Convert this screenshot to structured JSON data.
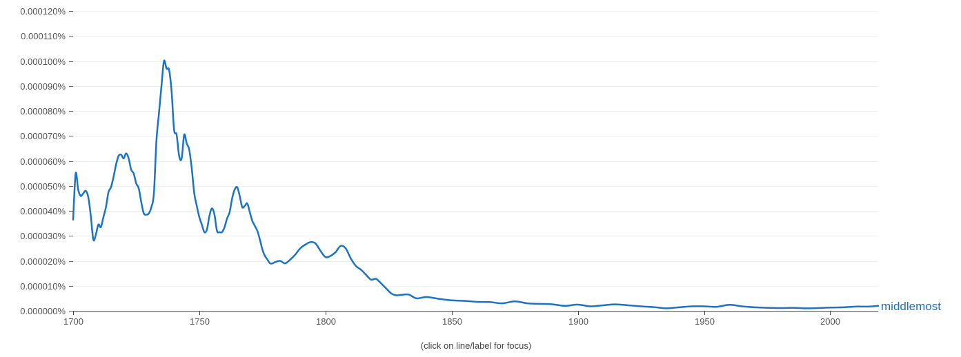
{
  "chart_data": {
    "type": "line",
    "xlim": [
      1700,
      2019
    ],
    "ylim": [
      0,
      0.00012
    ],
    "y_ticks": [
      0,
      1e-05,
      2e-05,
      3e-05,
      4e-05,
      5e-05,
      6e-05,
      7e-05,
      8e-05,
      9e-05,
      0.0001,
      0.00011,
      0.00012
    ],
    "y_tick_labels": [
      "0.000000%",
      "0.000010%",
      "0.000020%",
      "0.000030%",
      "0.000040%",
      "0.000050%",
      "0.000060%",
      "0.000070%",
      "0.000080%",
      "0.000090%",
      "0.000100%",
      "0.000110%",
      "0.000120%"
    ],
    "x_ticks": [
      1700,
      1750,
      1800,
      1850,
      1900,
      1950,
      2000
    ],
    "x_tick_labels": [
      "1700",
      "1750",
      "1800",
      "1850",
      "1900",
      "1950",
      "2000"
    ],
    "grid": true,
    "legend": "end-of-line label",
    "series": [
      {
        "name": "middlemost",
        "color": "#1a73c8",
        "x": [
          1700,
          1701,
          1702,
          1703,
          1704,
          1705,
          1706,
          1707,
          1708,
          1709,
          1710,
          1711,
          1712,
          1713,
          1714,
          1715,
          1716,
          1717,
          1718,
          1719,
          1720,
          1721,
          1722,
          1723,
          1724,
          1725,
          1726,
          1727,
          1728,
          1729,
          1730,
          1731,
          1732,
          1733,
          1734,
          1735,
          1736,
          1737,
          1738,
          1739,
          1740,
          1741,
          1742,
          1743,
          1744,
          1745,
          1746,
          1747,
          1748,
          1749,
          1750,
          1751,
          1752,
          1753,
          1754,
          1755,
          1756,
          1757,
          1758,
          1759,
          1760,
          1761,
          1762,
          1763,
          1764,
          1765,
          1766,
          1767,
          1768,
          1769,
          1770,
          1771,
          1772,
          1773,
          1774,
          1775,
          1776,
          1777,
          1778,
          1779,
          1780,
          1782,
          1784,
          1786,
          1788,
          1790,
          1792,
          1794,
          1796,
          1798,
          1800,
          1802,
          1804,
          1806,
          1808,
          1810,
          1812,
          1814,
          1816,
          1818,
          1820,
          1822,
          1824,
          1826,
          1828,
          1830,
          1833,
          1836,
          1840,
          1845,
          1850,
          1855,
          1860,
          1865,
          1870,
          1875,
          1880,
          1885,
          1890,
          1895,
          1900,
          1905,
          1910,
          1915,
          1920,
          1925,
          1930,
          1935,
          1940,
          1945,
          1950,
          1955,
          1960,
          1965,
          1970,
          1975,
          1980,
          1985,
          1990,
          1995,
          2000,
          2005,
          2010,
          2015,
          2019
        ],
        "values": [
          3.65e-05,
          5.5e-05,
          4.85e-05,
          4.6e-05,
          4.7e-05,
          4.8e-05,
          4.55e-05,
          3.8e-05,
          2.85e-05,
          3.05e-05,
          3.45e-05,
          3.35e-05,
          3.75e-05,
          4.15e-05,
          4.75e-05,
          4.95e-05,
          5.35e-05,
          5.85e-05,
          6.2e-05,
          6.25e-05,
          6.1e-05,
          6.3e-05,
          6.1e-05,
          5.65e-05,
          5.5e-05,
          5.1e-05,
          4.9e-05,
          4.35e-05,
          3.9e-05,
          3.85e-05,
          3.9e-05,
          4.15e-05,
          4.7e-05,
          6.8e-05,
          7.9e-05,
          9e-05,
          0.0001,
          9.7e-05,
          9.65e-05,
          8.8e-05,
          7.25e-05,
          7.05e-05,
          6.2e-05,
          6.1e-05,
          7.05e-05,
          6.7e-05,
          6.45e-05,
          5.7e-05,
          4.7e-05,
          4.2e-05,
          3.75e-05,
          3.45e-05,
          3.15e-05,
          3.25e-05,
          3.8e-05,
          4.1e-05,
          3.85e-05,
          3.2e-05,
          3.15e-05,
          3.15e-05,
          3.35e-05,
          3.7e-05,
          3.95e-05,
          4.5e-05,
          4.85e-05,
          4.95e-05,
          4.6e-05,
          4.15e-05,
          4.2e-05,
          4.3e-05,
          3.95e-05,
          3.6e-05,
          3.4e-05,
          3.2e-05,
          2.85e-05,
          2.45e-05,
          2.2e-05,
          2.05e-05,
          1.9e-05,
          1.9e-05,
          1.95e-05,
          2e-05,
          1.9e-05,
          2.05e-05,
          2.25e-05,
          2.5e-05,
          2.65e-05,
          2.75e-05,
          2.7e-05,
          2.4e-05,
          2.15e-05,
          2.2e-05,
          2.35e-05,
          2.6e-05,
          2.5e-05,
          2.1e-05,
          1.8e-05,
          1.65e-05,
          1.45e-05,
          1.25e-05,
          1.28e-05,
          1.1e-05,
          9e-06,
          7e-06,
          6.2e-06,
          6.4e-06,
          6.5e-06,
          5e-06,
          5.5e-06,
          4.8e-06,
          4.2e-06,
          4e-06,
          3.6e-06,
          3.5e-06,
          3e-06,
          3.8e-06,
          3e-06,
          2.8e-06,
          2.6e-06,
          2e-06,
          2.5e-06,
          1.8e-06,
          2.2e-06,
          2.6e-06,
          2.2e-06,
          1.8e-06,
          1.5e-06,
          1e-06,
          1.4e-06,
          1.8e-06,
          1.8e-06,
          1.6e-06,
          2.4e-06,
          1.8e-06,
          1.4e-06,
          1.2e-06,
          1.1e-06,
          1.2e-06,
          1e-06,
          1.1e-06,
          1.3e-06,
          1.4e-06,
          1.7e-06,
          1.7e-06,
          2e-06
        ]
      }
    ],
    "hint": "(click on line/label for focus)"
  }
}
